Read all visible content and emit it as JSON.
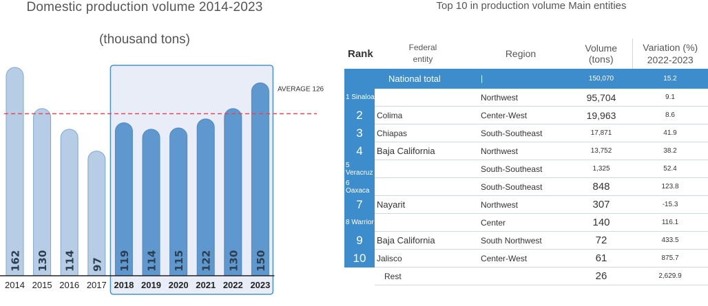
{
  "left_chart": {
    "title": "Domestic production volume 2014-2023",
    "subtitle": "(thousand tons)",
    "average_label": "AVERAGE 126"
  },
  "chart_data": {
    "type": "bar",
    "categories": [
      "2014",
      "2015",
      "2016",
      "2017",
      "2018",
      "2019",
      "2020",
      "2021",
      "2022",
      "2023"
    ],
    "values": [
      162,
      130,
      114,
      97,
      119,
      114,
      115,
      122,
      130,
      150
    ],
    "average": 126,
    "highlighted_categories": [
      "2018",
      "2019",
      "2020",
      "2021",
      "2022",
      "2023"
    ],
    "colors": {
      "light_bar": "#b7cde6",
      "dark_bar": "#5f98cf",
      "highlight_box_fill": "#e8edf8",
      "highlight_box_stroke": "#4a92c9",
      "average_line": "#e04a55"
    }
  },
  "right_table": {
    "title": "Top 10 in production volume Main entities",
    "headers": {
      "rank": "Rank",
      "federal_line1": "Federal",
      "federal_line2": "entity",
      "region": "Region",
      "volume_line1": "Volume",
      "volume_line2": "(tons)",
      "variation_line1": "Variation (%)",
      "variation_line2": "2022-2023"
    },
    "national": {
      "label": "National total",
      "marker": "|",
      "volume": "150,070",
      "variation": "15.2"
    },
    "rows": [
      {
        "rank": "1 Sinaloa",
        "entity": "",
        "region": "Northwest",
        "volume": "95,704",
        "variation": "9.1"
      },
      {
        "rank": "2",
        "entity": "Colima",
        "region": "Center-West",
        "volume": "19,963",
        "variation": "8.6"
      },
      {
        "rank": "3",
        "entity": "Chiapas",
        "region": "South-Southeast",
        "volume": "17,871",
        "variation": "41.9"
      },
      {
        "rank": "4",
        "entity": "Baja California",
        "region": "Northwest",
        "volume": "13,752",
        "variation": "38.2"
      },
      {
        "rank": "5 Veracruz",
        "entity": "",
        "region": "South-Southeast",
        "volume": "1,325",
        "variation": "52.4"
      },
      {
        "rank": "6 Oaxaca",
        "entity": "",
        "region": "South-Southeast",
        "volume": "848",
        "variation": "123.8"
      },
      {
        "rank": "7",
        "entity": "Nayarit",
        "region": "Northwest",
        "volume": "307",
        "variation": "-15.3"
      },
      {
        "rank": "8 Warrior",
        "entity": "",
        "region": "Center",
        "volume": "140",
        "variation": "116.1"
      },
      {
        "rank": "9",
        "entity": "Baja California",
        "region": "South Northwest",
        "volume": "72",
        "variation": "433.5"
      },
      {
        "rank": "10",
        "entity": "Jalisco",
        "region": "Center-West",
        "volume": "61",
        "variation": "875.7"
      }
    ],
    "rest": {
      "label": "Rest",
      "volume": "26",
      "variation": "2,629.9"
    }
  }
}
